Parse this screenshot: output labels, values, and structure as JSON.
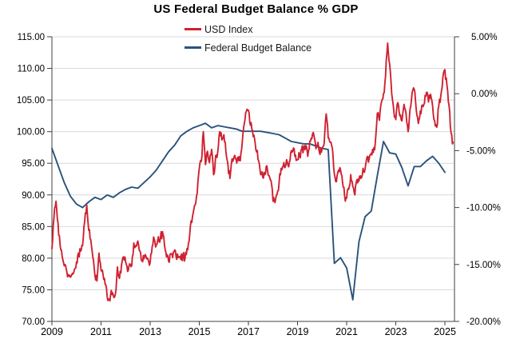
{
  "title": "US Federal Budget Balance % GDP",
  "legend": [
    {
      "label": "USD Index",
      "color": "#cf2130"
    },
    {
      "label": "Federal Budget Balance",
      "color": "#2b527c"
    }
  ],
  "chart_data": {
    "type": "line",
    "title": "US Federal Budget Balance % GDP",
    "grid": true,
    "grid_color": "#d9d9d9",
    "axis_color": "#404040",
    "legend_position": "top-center",
    "x_axis": {
      "tick_labels": [
        "2009",
        "2011",
        "2013",
        "2015",
        "2017",
        "2019",
        "2021",
        "2023",
        "2025"
      ],
      "tick_values": [
        2009,
        2011,
        2013,
        2015,
        2017,
        2019,
        2021,
        2023,
        2025
      ],
      "range": [
        2009,
        2025.39
      ]
    },
    "left_axis": {
      "series": "USD Index",
      "tick_labels": [
        "115.00",
        "110.00",
        "105.00",
        "100.00",
        "95.00",
        "90.00",
        "85.00",
        "80.00",
        "75.00",
        "70.00"
      ],
      "tick_values": [
        115,
        110,
        105,
        100,
        95,
        90,
        85,
        80,
        75,
        70
      ],
      "range": [
        70,
        115
      ]
    },
    "right_axis": {
      "series": "Federal Budget Balance",
      "tick_labels": [
        "5.00%",
        "0.00%",
        "-5.00%",
        "-10.00%",
        "-15.00%",
        "-20.00%"
      ],
      "tick_values": [
        5,
        0,
        -5,
        -10,
        -15,
        -20
      ],
      "range": [
        -20,
        5
      ]
    },
    "series": [
      {
        "name": "USD Index",
        "axis": "left",
        "color": "#cf2130",
        "x_start": 2009.0,
        "x_step_years": 0.0833333,
        "noisy": true,
        "values": [
          81.5,
          86.5,
          89.0,
          85.5,
          82.0,
          80.3,
          78.8,
          78.3,
          77.4,
          77.0,
          77.6,
          78.2,
          79.4,
          80.8,
          81.1,
          82.0,
          85.8,
          88.4,
          84.4,
          82.9,
          80.1,
          77.3,
          76.4,
          80.8,
          78.1,
          77.3,
          75.9,
          73.9,
          73.5,
          74.9,
          74.1,
          74.3,
          78.6,
          76.8,
          78.9,
          80.2,
          79.4,
          77.9,
          79.1,
          78.8,
          82.4,
          82.0,
          82.7,
          81.1,
          79.6,
          79.9,
          80.2,
          79.8,
          79.3,
          81.9,
          83.0,
          82.1,
          83.4,
          83.1,
          84.2,
          82.1,
          80.2,
          79.5,
          80.7,
          80.1,
          81.3,
          79.8,
          80.2,
          79.8,
          80.4,
          79.9,
          81.5,
          82.7,
          85.9,
          87.1,
          88.4,
          90.3,
          94.2,
          95.3,
          100.0,
          94.8,
          96.9,
          95.1,
          97.2,
          93.2,
          96.2,
          96.8,
          100.0,
          98.7,
          99.5,
          96.9,
          94.8,
          92.6,
          95.7,
          96.0,
          95.6,
          96.0,
          95.4,
          98.3,
          101.3,
          103.2,
          103.4,
          101.0,
          100.2,
          98.9,
          96.8,
          95.4,
          93.2,
          92.8,
          93.2,
          94.6,
          93.1,
          92.3,
          89.0,
          88.8,
          90.1,
          91.9,
          94.2,
          94.6,
          94.4,
          95.2,
          95.1,
          97.0,
          97.4,
          96.3,
          95.6,
          96.2,
          97.2,
          97.5,
          97.8,
          96.1,
          98.5,
          98.9,
          99.4,
          97.3,
          98.3,
          96.4,
          97.4,
          98.1,
          102.8,
          99.0,
          98.3,
          97.4,
          93.3,
          92.1,
          93.9,
          94.0,
          91.9,
          89.9,
          89.5,
          90.9,
          93.2,
          91.3,
          90.0,
          92.4,
          92.2,
          92.6,
          94.2,
          94.1,
          96.0,
          95.7,
          96.6,
          96.7,
          98.3,
          102.9,
          101.8,
          104.7,
          106.0,
          108.8,
          114.0,
          110.7,
          106.0,
          103.5,
          101.9,
          104.6,
          102.5,
          101.7,
          104.3,
          102.9,
          100.0,
          103.6,
          106.2,
          106.7,
          103.5,
          101.3,
          103.3,
          104.2,
          104.5,
          106.2,
          104.7,
          105.9,
          104.1,
          101.7,
          100.7,
          104.0,
          105.7,
          108.5,
          109.8,
          107.3,
          104.2,
          99.8,
          98.3
        ]
      },
      {
        "name": "Federal Budget Balance",
        "axis": "right",
        "color": "#2b527c",
        "x_start": 2009.0,
        "x_step_years": 0.25,
        "noisy": false,
        "values": [
          -4.8,
          -6.3,
          -7.8,
          -9.0,
          -9.7,
          -10.0,
          -9.5,
          -9.1,
          -9.3,
          -8.9,
          -9.1,
          -8.7,
          -8.4,
          -8.2,
          -8.3,
          -7.8,
          -7.3,
          -6.7,
          -5.9,
          -5.1,
          -4.5,
          -3.7,
          -3.3,
          -3.0,
          -2.8,
          -2.6,
          -3.0,
          -2.8,
          -2.9,
          -3.0,
          -3.1,
          -3.3,
          -3.3,
          -3.3,
          -3.3,
          -3.4,
          -3.5,
          -3.6,
          -3.9,
          -4.2,
          -4.3,
          -4.4,
          -4.4,
          -4.6,
          -4.8,
          -4.9,
          -14.9,
          -14.4,
          -15.3,
          -18.1,
          -13.0,
          -10.8,
          -10.3,
          -7.2,
          -4.2,
          -5.2,
          -5.3,
          -6.5,
          -8.1,
          -6.4,
          -6.4,
          -5.9,
          -5.5,
          -6.1,
          -6.9
        ]
      }
    ]
  }
}
